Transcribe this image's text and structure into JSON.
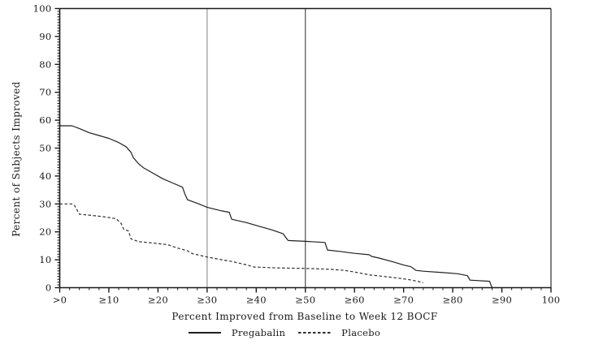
{
  "chart_data": {
    "type": "line",
    "title": "",
    "xlabel": "Percent Improved from Baseline to Week 12 BOCF",
    "ylabel": "Percent of Subjects Improved",
    "xlim": [
      0,
      100
    ],
    "ylim": [
      0,
      100
    ],
    "x_tick_values": [
      0,
      10,
      20,
      30,
      40,
      50,
      60,
      70,
      80,
      90,
      100
    ],
    "x_tick_labels": [
      ">0",
      "≥10",
      "≥20",
      "≥30",
      "≥40",
      "≥50",
      "≥60",
      "≥70",
      "≥80",
      "≥90",
      "100"
    ],
    "y_tick_values": [
      0,
      10,
      20,
      30,
      40,
      50,
      60,
      70,
      80,
      90,
      100
    ],
    "y_tick_labels": [
      "0",
      "10",
      "20",
      "30",
      "40",
      "50",
      "60",
      "70",
      "80",
      "90",
      "100"
    ],
    "x_minor_step": 2,
    "y_minor_step": 1,
    "grid": false,
    "frame": true,
    "legend_position": "bottom-center",
    "axis_color": "#1a1a1a",
    "reference_lines": [
      {
        "axis": "x",
        "value": 30,
        "color": "#ababab",
        "width": 1.5
      },
      {
        "axis": "x",
        "value": 50,
        "color": "#4d4d4d",
        "width": 1.2
      }
    ],
    "series": [
      {
        "name": "Pregabalin",
        "line_style": "solid",
        "color": "#1f1f1f",
        "points": [
          [
            0,
            58
          ],
          [
            2.5,
            58
          ],
          [
            4,
            57
          ],
          [
            6,
            55.5
          ],
          [
            8,
            54.5
          ],
          [
            10,
            53.5
          ],
          [
            12,
            52
          ],
          [
            13.5,
            50.5
          ],
          [
            14.5,
            48.5
          ],
          [
            15,
            46.5
          ],
          [
            16,
            44.5
          ],
          [
            17,
            43
          ],
          [
            19,
            41
          ],
          [
            21,
            39
          ],
          [
            23,
            37.5
          ],
          [
            25,
            36
          ],
          [
            25.5,
            33.5
          ],
          [
            26,
            31.5
          ],
          [
            28,
            30.2
          ],
          [
            30,
            28.8
          ],
          [
            33,
            27.5
          ],
          [
            34.5,
            27
          ],
          [
            35,
            24.5
          ],
          [
            38,
            23.3
          ],
          [
            40,
            22.3
          ],
          [
            43,
            20.8
          ],
          [
            45.5,
            19.3
          ],
          [
            46,
            18
          ],
          [
            46.5,
            16.9
          ],
          [
            50,
            16.6
          ],
          [
            54,
            16.2
          ],
          [
            54.5,
            13.5
          ],
          [
            57,
            13
          ],
          [
            60,
            12.3
          ],
          [
            63,
            11.8
          ],
          [
            63.5,
            11.2
          ],
          [
            65,
            10.6
          ],
          [
            68,
            9.2
          ],
          [
            70,
            8.1
          ],
          [
            71.5,
            7.5
          ],
          [
            72.5,
            6.2
          ],
          [
            74,
            5.9
          ],
          [
            78,
            5.4
          ],
          [
            81,
            5
          ],
          [
            83,
            4.3
          ],
          [
            83.5,
            2.7
          ],
          [
            87.5,
            2.3
          ],
          [
            88,
            0
          ]
        ]
      },
      {
        "name": "Placebo",
        "line_style": "dashed",
        "color": "#2e2e2e",
        "points": [
          [
            0,
            30
          ],
          [
            2.5,
            30
          ],
          [
            3,
            29.5
          ],
          [
            4,
            26.3
          ],
          [
            6,
            26
          ],
          [
            9,
            25.4
          ],
          [
            11.5,
            24.7
          ],
          [
            12.5,
            23
          ],
          [
            13,
            21
          ],
          [
            14,
            20.3
          ],
          [
            14.5,
            17.5
          ],
          [
            16,
            16.5
          ],
          [
            19,
            16
          ],
          [
            22,
            15.4
          ],
          [
            24,
            14.2
          ],
          [
            26,
            13.2
          ],
          [
            27,
            12.2
          ],
          [
            30,
            11
          ],
          [
            33,
            10
          ],
          [
            35,
            9.4
          ],
          [
            38,
            8.2
          ],
          [
            39.5,
            7.4
          ],
          [
            44,
            7.1
          ],
          [
            50,
            6.9
          ],
          [
            55,
            6.6
          ],
          [
            58,
            6.2
          ],
          [
            60,
            5.6
          ],
          [
            63,
            4.6
          ],
          [
            66,
            4
          ],
          [
            69,
            3.4
          ],
          [
            71,
            2.9
          ],
          [
            73,
            2.2
          ],
          [
            74,
            1.8
          ]
        ]
      }
    ]
  }
}
